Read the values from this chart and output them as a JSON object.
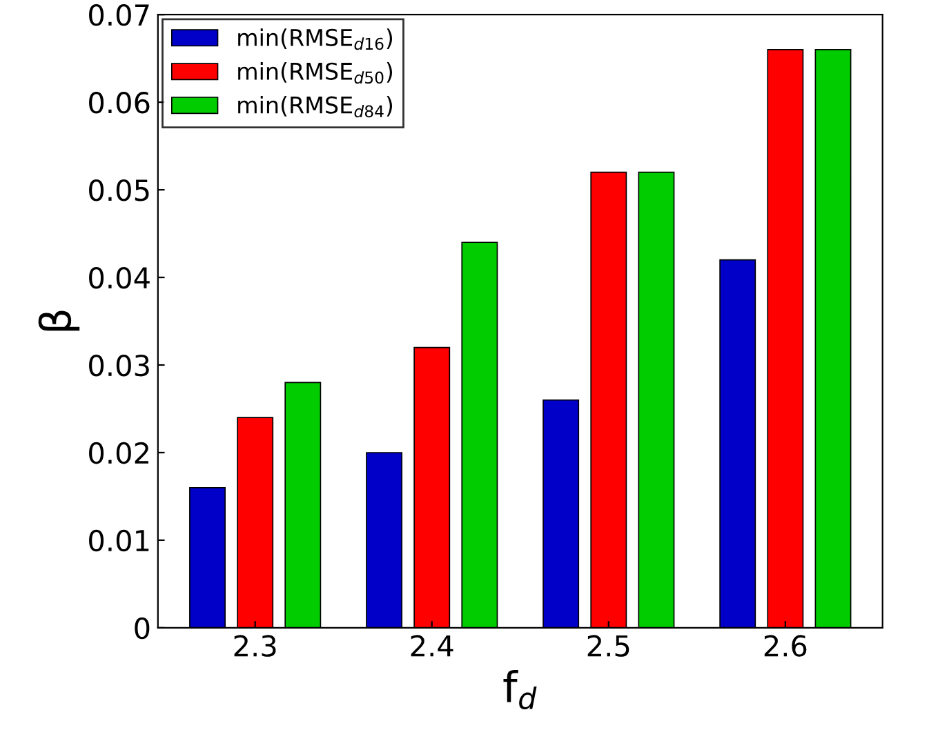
{
  "chart_data": {
    "type": "bar",
    "xlabel": "f$_{d}$",
    "ylabel": "β",
    "categories": [
      "2.3",
      "2.4",
      "2.5",
      "2.6"
    ],
    "series": [
      {
        "name": "min(RMSE$_{d16}$)",
        "color": "#0000c8",
        "values": [
          0.016,
          0.02,
          0.026,
          0.042
        ]
      },
      {
        "name": "min(RMSE$_{d50}$)",
        "color": "#ff0000",
        "values": [
          0.024,
          0.032,
          0.052,
          0.066
        ]
      },
      {
        "name": "min(RMSE$_{d84}$)",
        "color": "#00cc00",
        "values": [
          0.028,
          0.044,
          0.052,
          0.066
        ]
      }
    ],
    "ylim": [
      0,
      0.07
    ],
    "yticks": [
      0,
      0.01,
      0.02,
      0.03,
      0.04,
      0.05,
      0.06,
      0.07
    ],
    "grid": false,
    "legend": "top left"
  }
}
